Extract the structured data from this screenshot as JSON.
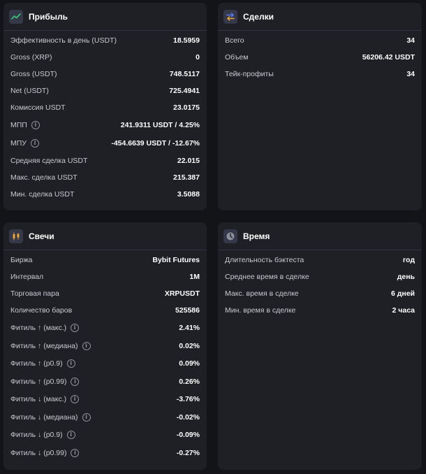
{
  "profit": {
    "title": "Прибыль",
    "icon": "trend-line-icon",
    "rows": [
      {
        "label": "Эффективность в день (USDT)",
        "value": "18.5959"
      },
      {
        "label": "Gross (XRP)",
        "value": "0"
      },
      {
        "label": "Gross (USDT)",
        "value": "748.5117"
      },
      {
        "label": "Net (USDT)",
        "value": "725.4941"
      },
      {
        "label": "Комиссия USDT",
        "value": "23.0175"
      },
      {
        "label": "МПП",
        "value": "241.9311 USDT / 4.25%",
        "info": true
      },
      {
        "label": "МПУ",
        "value": "-454.6639 USDT / -12.67%",
        "info": true
      },
      {
        "label": "Средняя сделка USDT",
        "value": "22.015"
      },
      {
        "label": "Макс. сделка USDT",
        "value": "215.387"
      },
      {
        "label": "Мин. сделка USDT",
        "value": "3.5088"
      }
    ]
  },
  "deals": {
    "title": "Сделки",
    "icon": "swap-arrows-icon",
    "rows": [
      {
        "label": "Всего",
        "value": "34"
      },
      {
        "label": "Объем",
        "value": "56206.42 USDT"
      },
      {
        "label": "Тейк-профиты",
        "value": "34"
      }
    ]
  },
  "candles": {
    "title": "Свечи",
    "icon": "candlestick-icon",
    "rows": [
      {
        "label": "Биржа",
        "value": "Bybit Futures"
      },
      {
        "label": "Интервал",
        "value": "1M"
      },
      {
        "label": "Торговая пара",
        "value": "XRPUSDT"
      },
      {
        "label": "Количество баров",
        "value": "525586"
      },
      {
        "label": "Фитиль ↑ (макс.)",
        "value": "2.41%",
        "info": true
      },
      {
        "label": "Фитиль ↑ (медиана)",
        "value": "0.02%",
        "info": true
      },
      {
        "label": "Фитиль ↑ (p0.9)",
        "value": "0.09%",
        "info": true
      },
      {
        "label": "Фитиль ↑ (p0.99)",
        "value": "0.26%",
        "info": true
      },
      {
        "label": "Фитиль ↓ (макс.)",
        "value": "-3.76%",
        "info": true
      },
      {
        "label": "Фитиль ↓ (медиана)",
        "value": "-0.02%",
        "info": true
      },
      {
        "label": "Фитиль ↓ (p0.9)",
        "value": "-0.09%",
        "info": true
      },
      {
        "label": "Фитиль ↓ (p0.99)",
        "value": "-0.27%",
        "info": true
      }
    ]
  },
  "time": {
    "title": "Время",
    "icon": "clock-icon",
    "rows": [
      {
        "label": "Длительность бэктеста",
        "value": "год"
      },
      {
        "label": "Среднее время в сделке",
        "value": "день"
      },
      {
        "label": "Макс. время в сделке",
        "value": "6 дней"
      },
      {
        "label": "Мин. время в сделке",
        "value": "2 часа"
      }
    ]
  },
  "colors": {
    "background": "#131418",
    "card": "#1f2026",
    "divider": "#34353c",
    "label": "#c9cad0",
    "value": "#ffffff",
    "profit_icon": "#3ec97b",
    "deals_icon": "#5b7cf5",
    "candles_icon": "#e8a53a",
    "time_icon": "#d7d8de"
  }
}
